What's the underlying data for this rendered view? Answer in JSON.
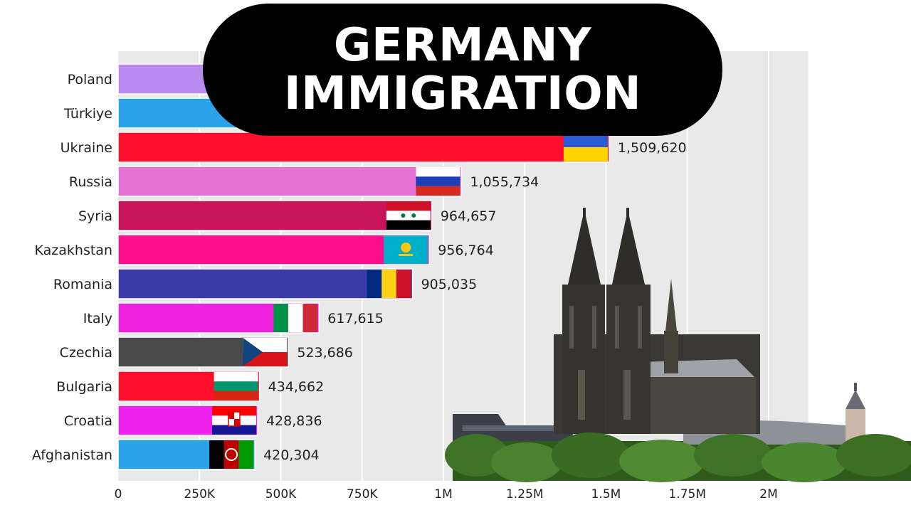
{
  "title": {
    "line1": "GERMANY",
    "line2": "IMMIGRATION"
  },
  "chart_data": {
    "type": "bar",
    "orientation": "horizontal",
    "categories": [
      "Poland",
      "Türkiye",
      "Ukraine",
      "Russia",
      "Syria",
      "Kazakhstan",
      "Romania",
      "Italy",
      "Czechia",
      "Bulgaria",
      "Croatia",
      "Afghanistan"
    ],
    "values": [
      null,
      null,
      1509620,
      1055734,
      964657,
      956764,
      905035,
      617615,
      523686,
      434662,
      428836,
      420304
    ],
    "value_labels": [
      "",
      "",
      "1,509,620",
      "1,055,734",
      "964,657",
      "956,764",
      "905,035",
      "617,615",
      "523,686",
      "434,662",
      "428,836",
      "420,304"
    ],
    "bar_colors": [
      "#b98af0",
      "#2ba3ea",
      "#ff0f2c",
      "#e472d2",
      "#c8155a",
      "#ff0f8c",
      "#3b3aa8",
      "#ef22e0",
      "#4a4a4a",
      "#ff0f2c",
      "#ef22ef",
      "#29a3ea"
    ],
    "flags": [
      "",
      "",
      "ukraine-flag",
      "russia-flag",
      "syria-flag",
      "kazakhstan-flag",
      "romania-flag",
      "italy-flag",
      "czechia-flag",
      "bulgaria-flag",
      "croatia-flag",
      "afghanistan-flag"
    ],
    "xlim": [
      0,
      2500000
    ],
    "xticks": [
      0,
      250000,
      500000,
      750000,
      1000000,
      1250000,
      1500000,
      1750000,
      2000000
    ],
    "xtick_labels": [
      "0",
      "250K",
      "500K",
      "750K",
      "1M",
      "1.25M",
      "1.5M",
      "1.75M",
      "2M"
    ],
    "grid": true
  },
  "photo": {
    "subject": "cologne-cathedral-photo"
  }
}
